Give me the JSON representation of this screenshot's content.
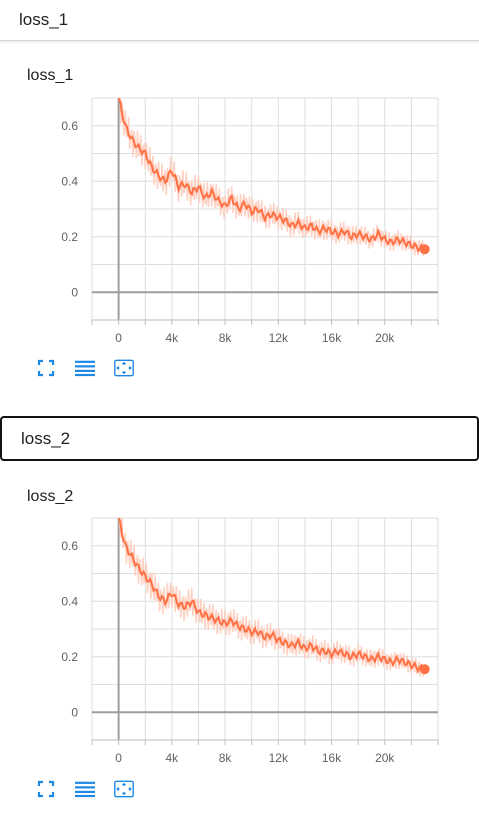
{
  "sections": [
    {
      "header": "loss_1",
      "card_title": "loss_1"
    },
    {
      "header": "loss_2",
      "card_title": "loss_2"
    }
  ],
  "icons": {
    "fullscreen": "fullscreen-icon",
    "legend": "legend-list-icon",
    "fit": "fit-domain-icon"
  },
  "colors": {
    "series": "#ff7043",
    "series_raw": "#ffccbc",
    "grid": "#dddddd",
    "axis": "#9e9e9e",
    "icon": "#1e88e5"
  },
  "chart_data": [
    {
      "type": "line",
      "title": "loss_1",
      "x_ticks": [
        "0",
        "4k",
        "8k",
        "12k",
        "16k",
        "20k"
      ],
      "y_ticks": [
        "0",
        "0.2",
        "0.4",
        "0.6"
      ],
      "xlim": [
        -2000,
        24000
      ],
      "ylim": [
        -0.1,
        0.7
      ],
      "grid": true,
      "series": [
        {
          "x": [
            0,
            500,
            1000,
            1500,
            2000,
            2500,
            3000,
            3500,
            4000,
            4500,
            5000,
            5500,
            6000,
            6500,
            7000,
            7500,
            8000,
            8500,
            9000,
            9500,
            10000,
            10500,
            11000,
            11500,
            12000,
            12500,
            13000,
            13500,
            14000,
            14500,
            15000,
            15500,
            16000,
            16500,
            17000,
            17500,
            18000,
            18500,
            19000,
            19500,
            20000,
            20500,
            21000,
            21500,
            22000,
            22500,
            23000
          ],
          "y": [
            0.7,
            0.6,
            0.55,
            0.52,
            0.5,
            0.45,
            0.42,
            0.4,
            0.44,
            0.38,
            0.39,
            0.36,
            0.38,
            0.34,
            0.36,
            0.33,
            0.31,
            0.34,
            0.3,
            0.32,
            0.29,
            0.3,
            0.27,
            0.28,
            0.27,
            0.26,
            0.24,
            0.25,
            0.23,
            0.24,
            0.22,
            0.23,
            0.22,
            0.21,
            0.22,
            0.2,
            0.21,
            0.2,
            0.19,
            0.21,
            0.19,
            0.18,
            0.19,
            0.18,
            0.17,
            0.16,
            0.155
          ],
          "band": 0.06
        }
      ]
    },
    {
      "type": "line",
      "title": "loss_2",
      "x_ticks": [
        "0",
        "4k",
        "8k",
        "12k",
        "16k",
        "20k"
      ],
      "y_ticks": [
        "0",
        "0.2",
        "0.4",
        "0.6"
      ],
      "xlim": [
        -2000,
        24000
      ],
      "ylim": [
        -0.1,
        0.7
      ],
      "grid": true,
      "series": [
        {
          "x": [
            0,
            500,
            1000,
            1500,
            2000,
            2500,
            3000,
            3500,
            4000,
            4500,
            5000,
            5500,
            6000,
            6500,
            7000,
            7500,
            8000,
            8500,
            9000,
            9500,
            10000,
            10500,
            11000,
            11500,
            12000,
            12500,
            13000,
            13500,
            14000,
            14500,
            15000,
            15500,
            16000,
            16500,
            17000,
            17500,
            18000,
            18500,
            19000,
            19500,
            20000,
            20500,
            21000,
            21500,
            22000,
            22500,
            23000
          ],
          "y": [
            0.7,
            0.6,
            0.56,
            0.52,
            0.49,
            0.46,
            0.42,
            0.4,
            0.43,
            0.39,
            0.38,
            0.4,
            0.36,
            0.35,
            0.34,
            0.33,
            0.32,
            0.33,
            0.31,
            0.3,
            0.29,
            0.29,
            0.27,
            0.28,
            0.26,
            0.25,
            0.24,
            0.25,
            0.23,
            0.24,
            0.22,
            0.22,
            0.21,
            0.22,
            0.21,
            0.2,
            0.21,
            0.2,
            0.19,
            0.2,
            0.19,
            0.18,
            0.19,
            0.18,
            0.17,
            0.16,
            0.155
          ],
          "band": 0.06
        }
      ]
    }
  ]
}
